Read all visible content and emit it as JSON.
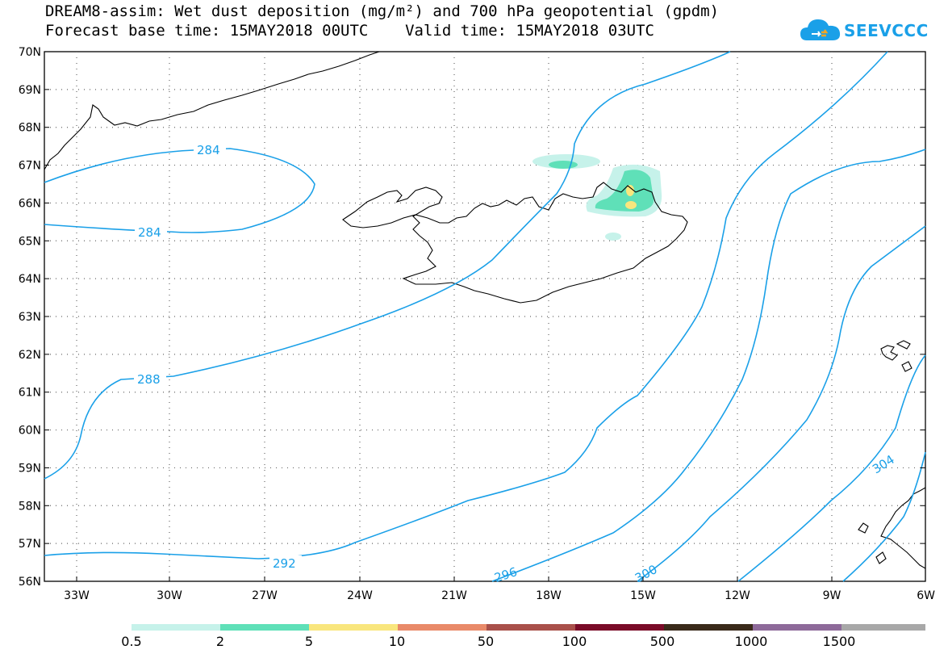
{
  "title": {
    "line1": "DREAM8-assim: Wet dust deposition (mg/m²) and 700 hPa geopotential (gpdm)",
    "line2": "Forecast base time: 15MAY2018 00UTC    Valid time: 15MAY2018 03UTC"
  },
  "logo": {
    "text": "SEEVCCC",
    "icon": "cloud-icon",
    "color": "#1aa0e8"
  },
  "latitude_labels": [
    "70N",
    "69N",
    "68N",
    "67N",
    "66N",
    "65N",
    "64N",
    "63N",
    "62N",
    "61N",
    "60N",
    "59N",
    "58N",
    "57N",
    "56N"
  ],
  "longitude_labels": [
    "33W",
    "30W",
    "27W",
    "24W",
    "21W",
    "18W",
    "15W",
    "12W",
    "9W",
    "6W"
  ],
  "contour_labels": [
    "284",
    "284",
    "288",
    "292",
    "296",
    "300",
    "304"
  ],
  "contour_color": "#1aa0e8",
  "colorbar": {
    "labels": [
      "0.5",
      "2",
      "5",
      "10",
      "50",
      "100",
      "500",
      "1000",
      "1500"
    ],
    "colors": [
      "#c6f2ea",
      "#5fe0b8",
      "#f9e67d",
      "#e98a69",
      "#a9504a",
      "#7a0b28",
      "#3a2a1a",
      "#8e6a9a",
      "#a8a8a8"
    ]
  }
}
